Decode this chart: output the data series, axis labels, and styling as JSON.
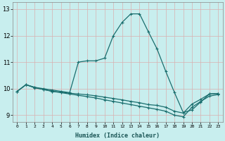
{
  "xlabel": "Humidex (Indice chaleur)",
  "ylabel": "",
  "background_color": "#c8eeee",
  "grid_color": "#d8b0b0",
  "line_color": "#1a6e6e",
  "xlim": [
    -0.5,
    23.5
  ],
  "ylim": [
    8.75,
    13.25
  ],
  "yticks": [
    9,
    10,
    11,
    12,
    13
  ],
  "xticks": [
    0,
    1,
    2,
    3,
    4,
    5,
    6,
    7,
    8,
    9,
    10,
    11,
    12,
    13,
    14,
    15,
    16,
    17,
    18,
    19,
    20,
    21,
    22,
    23
  ],
  "xtick_labels": [
    "0",
    "1",
    "2",
    "3",
    "4",
    "5",
    "6",
    "7",
    "8",
    "9",
    "10",
    "11",
    "12",
    "13",
    "14",
    "15",
    "16",
    "17",
    "18",
    "19",
    "20",
    "21",
    "22",
    "23"
  ],
  "series1_x": [
    0,
    1,
    2,
    3,
    4,
    5,
    6,
    7,
    8,
    9,
    10,
    11,
    12,
    13,
    14,
    15,
    16,
    17,
    18,
    19,
    20,
    21,
    22,
    23
  ],
  "series1_y": [
    9.9,
    10.15,
    10.05,
    10.0,
    9.95,
    9.9,
    9.85,
    11.0,
    11.05,
    11.05,
    11.15,
    12.0,
    12.5,
    12.82,
    12.82,
    12.15,
    11.5,
    10.65,
    9.85,
    9.1,
    9.2,
    9.5,
    9.8,
    9.82
  ],
  "series2_x": [
    0,
    1,
    2,
    3,
    4,
    5,
    6,
    7,
    8,
    9,
    10,
    11,
    12,
    13,
    14,
    15,
    16,
    17,
    18,
    19,
    20,
    21,
    22,
    23
  ],
  "series2_y": [
    9.9,
    10.15,
    10.05,
    9.97,
    9.9,
    9.87,
    9.83,
    9.8,
    9.77,
    9.73,
    9.68,
    9.63,
    9.58,
    9.52,
    9.47,
    9.4,
    9.37,
    9.3,
    9.15,
    9.08,
    9.42,
    9.6,
    9.8,
    9.82
  ],
  "series3_x": [
    0,
    1,
    2,
    3,
    4,
    5,
    6,
    7,
    8,
    9,
    10,
    11,
    12,
    13,
    14,
    15,
    16,
    17,
    18,
    19,
    20,
    21,
    22,
    23
  ],
  "series3_y": [
    9.9,
    10.15,
    10.03,
    9.97,
    9.9,
    9.85,
    9.8,
    9.75,
    9.7,
    9.65,
    9.58,
    9.52,
    9.46,
    9.4,
    9.34,
    9.28,
    9.22,
    9.15,
    9.0,
    8.94,
    9.3,
    9.52,
    9.72,
    9.78
  ],
  "marker_style": "+",
  "marker_size": 3,
  "line_width": 0.9
}
